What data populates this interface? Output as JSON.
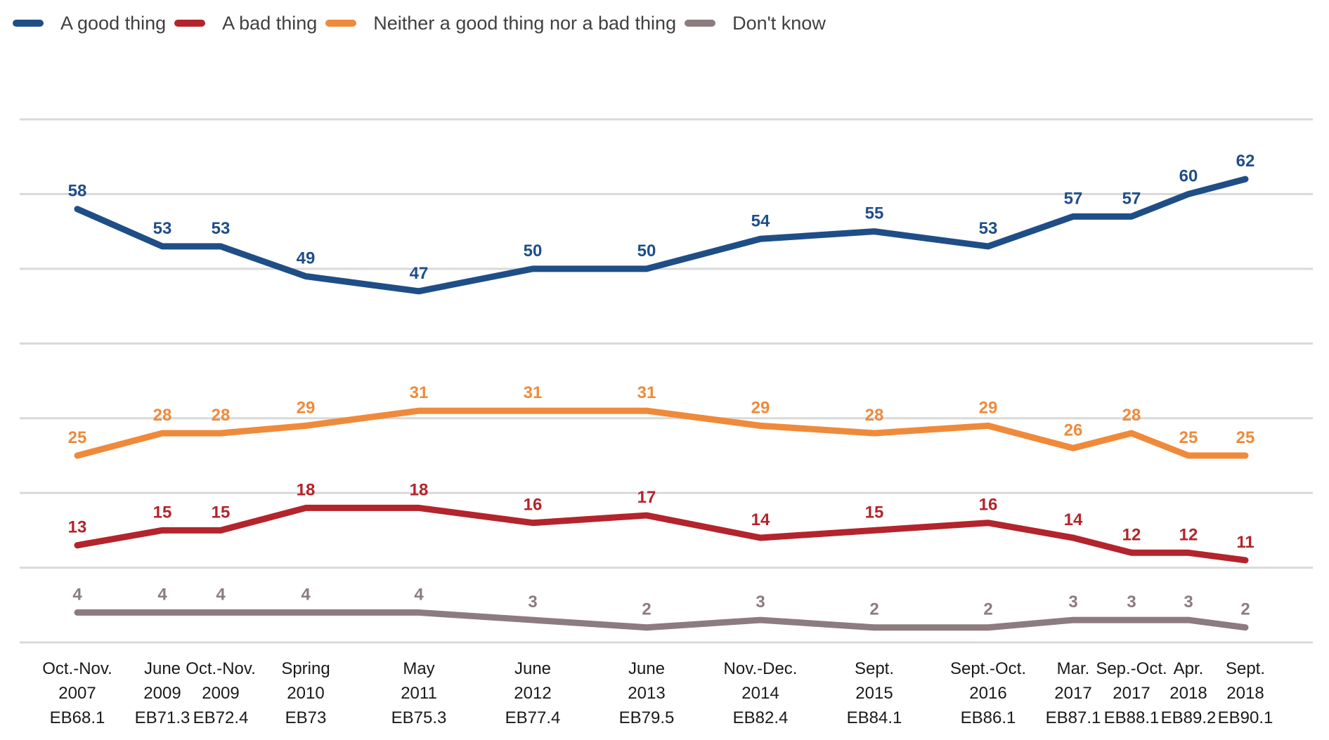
{
  "chart_data": {
    "type": "line",
    "title": "",
    "xlabel": "",
    "ylabel": "",
    "legend_position": "top-left",
    "grid": true,
    "ylim": [
      0,
      70
    ],
    "categories": [
      [
        "Oct.-Nov.",
        "2007",
        "EB68.1"
      ],
      [
        "June",
        "2009",
        "EB71.3"
      ],
      [
        "Oct.-Nov.",
        "2009",
        "EB72.4"
      ],
      [
        "Spring",
        "2010",
        "EB73"
      ],
      [
        "May",
        "2011",
        "EB75.3"
      ],
      [
        "June",
        "2012",
        "EB77.4"
      ],
      [
        "June",
        "2013",
        "EB79.5"
      ],
      [
        "Nov.-Dec.",
        "2014",
        "EB82.4"
      ],
      [
        "Sept.",
        "2015",
        "EB84.1"
      ],
      [
        "Sept.-Oct.",
        "2016",
        "EB86.1"
      ],
      [
        "Mar.",
        "2017",
        "EB87.1"
      ],
      [
        "Sep.-Oct.",
        "2017",
        "EB88.1"
      ],
      [
        "Apr.",
        "2018",
        "EB89.2"
      ],
      [
        "Sept.",
        "2018",
        "EB90.1"
      ]
    ],
    "series": [
      {
        "name": "A good thing",
        "color": "#1f4e87",
        "values": [
          58,
          53,
          53,
          49,
          47,
          50,
          50,
          54,
          55,
          53,
          57,
          57,
          60,
          62
        ]
      },
      {
        "name": "A bad thing",
        "color": "#b3242c",
        "values": [
          13,
          15,
          15,
          18,
          18,
          16,
          17,
          14,
          15,
          16,
          14,
          12,
          12,
          11
        ]
      },
      {
        "name": "Neither a good thing nor a bad thing",
        "color": "#ef8a3b",
        "values": [
          25,
          28,
          28,
          29,
          31,
          31,
          31,
          29,
          28,
          29,
          26,
          28,
          25,
          25
        ]
      },
      {
        "name": "Don't know",
        "color": "#8c7b7f",
        "values": [
          4,
          4,
          4,
          4,
          4,
          3,
          2,
          3,
          2,
          2,
          3,
          3,
          3,
          2
        ]
      }
    ]
  }
}
